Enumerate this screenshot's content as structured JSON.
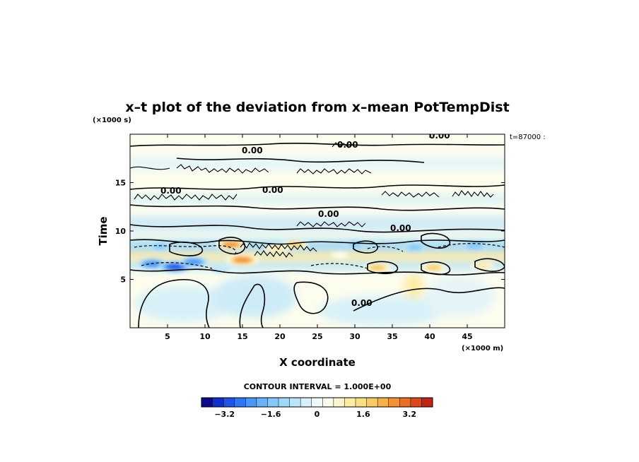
{
  "chart_data": {
    "type": "heatmap",
    "title": "x–t plot of the deviation from x–mean PotTempDist",
    "xlabel": "X coordinate",
    "ylabel": "Time",
    "x_unit": "(×1000 m)",
    "y_unit": "(×1000 s)",
    "xlim": [
      0,
      50
    ],
    "ylim": [
      0,
      20
    ],
    "x_ticks": [
      5,
      10,
      15,
      20,
      25,
      30,
      35,
      40,
      45
    ],
    "y_ticks": [
      5,
      10,
      15
    ],
    "time_note": "t=87000 :",
    "contour_interval": "CONTOUR INTERVAL = 1.000E+00",
    "contour_labels": [
      "0.00",
      "0.00",
      "0.00",
      "0.00",
      "0.00",
      "0.00",
      "0.00",
      "0.00"
    ],
    "colorbar": {
      "min": -4,
      "max": 4,
      "step": 0.4,
      "tick_labels": [
        "−3.2",
        "−1.6",
        "0",
        "1.6",
        "3.2"
      ],
      "tick_values": [
        -3.2,
        -1.6,
        0,
        1.6,
        3.2
      ],
      "colors": [
        "#0a0a8c",
        "#0f2fc8",
        "#1e55e6",
        "#2f77f0",
        "#4a98f5",
        "#66b3f8",
        "#82c8f8",
        "#9fd9f8",
        "#bce6f8",
        "#d8f1f8",
        "#f0fafb",
        "#fdfdee",
        "#fdf6cc",
        "#fdeca6",
        "#fbde82",
        "#f8cb62",
        "#f5b04a",
        "#f29135",
        "#ea6e25",
        "#db4a1c",
        "#c02616"
      ]
    },
    "features": [
      {
        "x": 3,
        "t": 6.6,
        "value": -2.8
      },
      {
        "x": 6,
        "t": 6.3,
        "value": -3.2
      },
      {
        "x": 8.5,
        "t": 6.8,
        "value": -2.6
      },
      {
        "x": 4,
        "t": 8.4,
        "value": -1.6
      },
      {
        "x": 13.5,
        "t": 8.6,
        "value": 3.0
      },
      {
        "x": 15,
        "t": 7.0,
        "value": 3.2
      },
      {
        "x": 19.5,
        "t": 8.2,
        "value": 2.0
      },
      {
        "x": 22,
        "t": 8.6,
        "value": 2.2
      },
      {
        "x": 28,
        "t": 7.5,
        "value": 1.2
      },
      {
        "x": 33,
        "t": 6.2,
        "value": 2.4
      },
      {
        "x": 40.5,
        "t": 6.2,
        "value": 2.2
      },
      {
        "x": 47,
        "t": 6.4,
        "value": 1.8
      },
      {
        "x": 30,
        "t": 8.6,
        "value": -1.4
      },
      {
        "x": 38,
        "t": 8.3,
        "value": -1.6
      },
      {
        "x": 46,
        "t": 8.5,
        "value": -2.0
      },
      {
        "x": 12,
        "t": 6.0,
        "value": -1.2
      }
    ]
  }
}
